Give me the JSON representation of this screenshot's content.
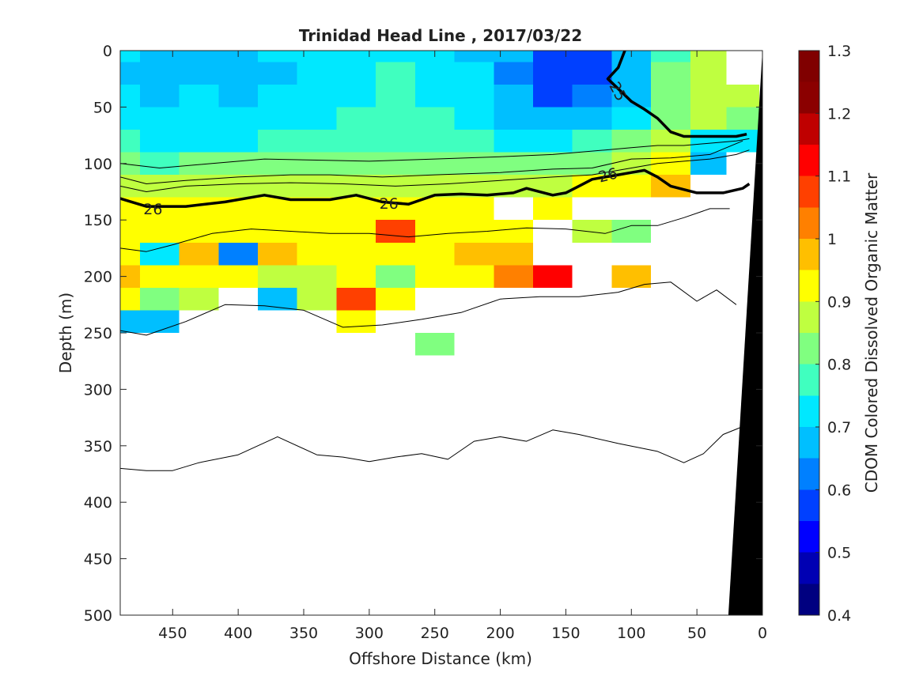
{
  "chart_data": {
    "type": "heatmap",
    "title": "Trinidad Head Line , 2017/03/22",
    "xlabel": "Offshore Distance (km)",
    "ylabel": "Depth (m)",
    "colorbar_label": "CDOM Colored Dissolved Organic Matter",
    "xlim": [
      490,
      0
    ],
    "ylim": [
      0,
      500
    ],
    "x_reversed": true,
    "y_reversed": true,
    "xticks": [
      450,
      400,
      350,
      300,
      250,
      200,
      150,
      100,
      50,
      0
    ],
    "yticks": [
      0,
      50,
      100,
      150,
      200,
      250,
      300,
      350,
      400,
      450,
      500
    ],
    "colorbar": {
      "min": 0.4,
      "max": 1.3,
      "ticks": [
        0.4,
        0.5,
        0.6,
        0.7,
        0.8,
        0.9,
        1.0,
        1.1,
        1.2,
        1.3
      ],
      "tick_labels": [
        "0.4",
        "0.5",
        "0.6",
        "0.7",
        "0.8",
        "0.9",
        "1",
        "1.1",
        "1.2",
        "1.3"
      ],
      "levels": [
        "#000080",
        "#0000b3",
        "#0000ff",
        "#0040ff",
        "#0080ff",
        "#00bfff",
        "#00e8ff",
        "#40ffbf",
        "#80ff80",
        "#bfff40",
        "#ffff00",
        "#ffbf00",
        "#ff8000",
        "#ff4000",
        "#ff0000",
        "#bf0000",
        "#8b0000",
        "#800000"
      ]
    },
    "cdom_field": {
      "x_km": [
        490,
        460,
        430,
        400,
        370,
        340,
        310,
        280,
        250,
        220,
        190,
        160,
        130,
        100,
        70,
        40,
        15
      ],
      "depth_m": [
        0,
        20,
        40,
        60,
        80,
        100,
        120,
        140,
        160,
        180,
        200,
        220,
        240,
        260
      ],
      "values": [
        [
          0.72,
          0.66,
          0.7,
          0.67,
          0.72,
          0.74,
          0.73,
          0.75,
          0.74,
          0.7,
          0.65,
          0.58,
          0.6,
          0.66,
          0.78,
          0.86,
          null
        ],
        [
          0.7,
          0.65,
          0.68,
          0.66,
          0.7,
          0.73,
          0.74,
          0.76,
          0.75,
          0.71,
          0.63,
          0.57,
          0.6,
          0.68,
          0.8,
          0.88,
          null
        ],
        [
          0.73,
          0.68,
          0.71,
          0.69,
          0.72,
          0.74,
          0.75,
          0.76,
          0.75,
          0.72,
          0.66,
          0.6,
          0.62,
          0.7,
          0.82,
          0.89,
          0.86
        ],
        [
          0.74,
          0.72,
          0.73,
          0.72,
          0.74,
          0.75,
          0.76,
          0.77,
          0.76,
          0.74,
          0.7,
          0.67,
          0.69,
          0.75,
          0.84,
          0.88,
          0.8
        ],
        [
          0.76,
          0.74,
          0.75,
          0.75,
          0.76,
          0.77,
          0.78,
          0.78,
          0.77,
          0.76,
          0.74,
          0.73,
          0.76,
          0.82,
          0.88,
          0.74,
          0.72
        ],
        [
          0.8,
          0.79,
          0.8,
          0.8,
          0.81,
          0.82,
          0.83,
          0.82,
          0.83,
          0.82,
          0.81,
          0.82,
          0.85,
          0.89,
          0.94,
          0.65,
          null
        ],
        [
          0.86,
          0.87,
          0.88,
          0.87,
          0.86,
          0.88,
          0.89,
          0.88,
          0.89,
          0.88,
          0.87,
          0.88,
          0.9,
          0.92,
          0.96,
          null,
          null
        ],
        [
          0.9,
          0.92,
          0.91,
          0.9,
          0.91,
          0.92,
          0.93,
          0.92,
          0.91,
          0.9,
          null,
          0.93,
          null,
          null,
          null,
          null,
          null
        ],
        [
          0.92,
          0.93,
          0.94,
          0.92,
          0.91,
          0.93,
          0.95,
          1.05,
          0.92,
          0.91,
          0.9,
          null,
          0.88,
          0.82,
          null,
          null,
          null
        ],
        [
          0.95,
          0.72,
          0.97,
          0.62,
          0.96,
          0.92,
          0.9,
          0.92,
          0.94,
          0.98,
          0.96,
          null,
          null,
          null,
          null,
          null,
          null
        ],
        [
          0.98,
          0.92,
          0.9,
          0.95,
          0.88,
          0.86,
          0.94,
          0.85,
          0.9,
          0.92,
          1.02,
          1.15,
          null,
          0.98,
          null,
          null,
          null
        ],
        [
          0.9,
          0.8,
          0.88,
          null,
          0.7,
          0.88,
          1.08,
          0.9,
          null,
          null,
          null,
          null,
          null,
          null,
          null,
          null,
          null
        ],
        [
          0.7,
          0.65,
          null,
          null,
          null,
          null,
          0.9,
          null,
          null,
          null,
          null,
          null,
          null,
          null,
          null,
          null,
          null
        ],
        [
          null,
          null,
          null,
          null,
          null,
          null,
          null,
          null,
          0.82,
          null,
          null,
          null,
          null,
          null,
          null,
          null,
          null
        ]
      ]
    },
    "density_contours": [
      {
        "label": "25",
        "bold": true,
        "x_km": [
          105,
          110,
          118,
          100,
          90,
          80,
          70,
          60,
          40,
          20,
          12
        ],
        "depth_m": [
          0,
          15,
          25,
          45,
          52,
          60,
          72,
          76,
          76,
          76,
          74
        ]
      },
      {
        "label": "26",
        "bold": true,
        "x_km": [
          490,
          470,
          440,
          410,
          380,
          360,
          330,
          310,
          290,
          270,
          250,
          230,
          210,
          190,
          180,
          160,
          150,
          140,
          130,
          120,
          110,
          100,
          90,
          80,
          70,
          50,
          30,
          15,
          10
        ],
        "depth_m": [
          131,
          138,
          138,
          134,
          128,
          132,
          132,
          128,
          134,
          136,
          128,
          127,
          128,
          126,
          122,
          128,
          126,
          120,
          114,
          112,
          110,
          108,
          106,
          112,
          120,
          126,
          126,
          122,
          118
        ]
      },
      {
        "label": "",
        "bold": false,
        "x_km": [
          490,
          470,
          440,
          400,
          360,
          330,
          290,
          250,
          200,
          160,
          130,
          100,
          70,
          40,
          15
        ],
        "depth_m": [
          112,
          118,
          115,
          112,
          110,
          110,
          112,
          110,
          108,
          105,
          104,
          96,
          95,
          92,
          80
        ]
      },
      {
        "label": "",
        "bold": false,
        "x_km": [
          490,
          470,
          440,
          400,
          360,
          320,
          280,
          240,
          200,
          160,
          130,
          100,
          80,
          60,
          40,
          20,
          10
        ],
        "depth_m": [
          120,
          125,
          120,
          118,
          117,
          118,
          120,
          118,
          115,
          112,
          110,
          104,
          100,
          98,
          96,
          92,
          88
        ]
      },
      {
        "label": "",
        "bold": false,
        "x_km": [
          490,
          460,
          420,
          380,
          340,
          300,
          250,
          200,
          160,
          120,
          100,
          80,
          60,
          40,
          20,
          10
        ],
        "depth_m": [
          100,
          104,
          100,
          96,
          97,
          98,
          96,
          94,
          92,
          88,
          86,
          84,
          84,
          82,
          80,
          78
        ]
      },
      {
        "label": "",
        "bold": false,
        "x_km": [
          490,
          470,
          450,
          420,
          390,
          360,
          330,
          300,
          270,
          240,
          210,
          180,
          150,
          120,
          100,
          80,
          60,
          40,
          25
        ],
        "depth_m": [
          175,
          178,
          172,
          162,
          158,
          160,
          162,
          162,
          165,
          162,
          160,
          157,
          158,
          162,
          155,
          155,
          148,
          140,
          140
        ]
      },
      {
        "label": "",
        "bold": false,
        "x_km": [
          490,
          470,
          440,
          410,
          380,
          350,
          320,
          290,
          260,
          230,
          200,
          170,
          140,
          110,
          90,
          70,
          50,
          35,
          20
        ],
        "depth_m": [
          248,
          252,
          240,
          225,
          226,
          230,
          245,
          243,
          238,
          232,
          220,
          218,
          218,
          214,
          207,
          205,
          222,
          212,
          225
        ]
      },
      {
        "label": "",
        "bold": false,
        "x_km": [
          490,
          470,
          450,
          430,
          400,
          370,
          340,
          320,
          300,
          280,
          260,
          240,
          220,
          200,
          180,
          160,
          140,
          110,
          80,
          60,
          45,
          30,
          15
        ],
        "depth_m": [
          370,
          372,
          372,
          365,
          358,
          342,
          358,
          360,
          364,
          360,
          357,
          362,
          346,
          342,
          346,
          336,
          340,
          348,
          355,
          365,
          357,
          340,
          333
        ]
      }
    ],
    "bathymetry": {
      "color": "#000000",
      "x_km": [
        0,
        0,
        26,
        0
      ],
      "depth_m": [
        0,
        500,
        500,
        0
      ]
    }
  }
}
